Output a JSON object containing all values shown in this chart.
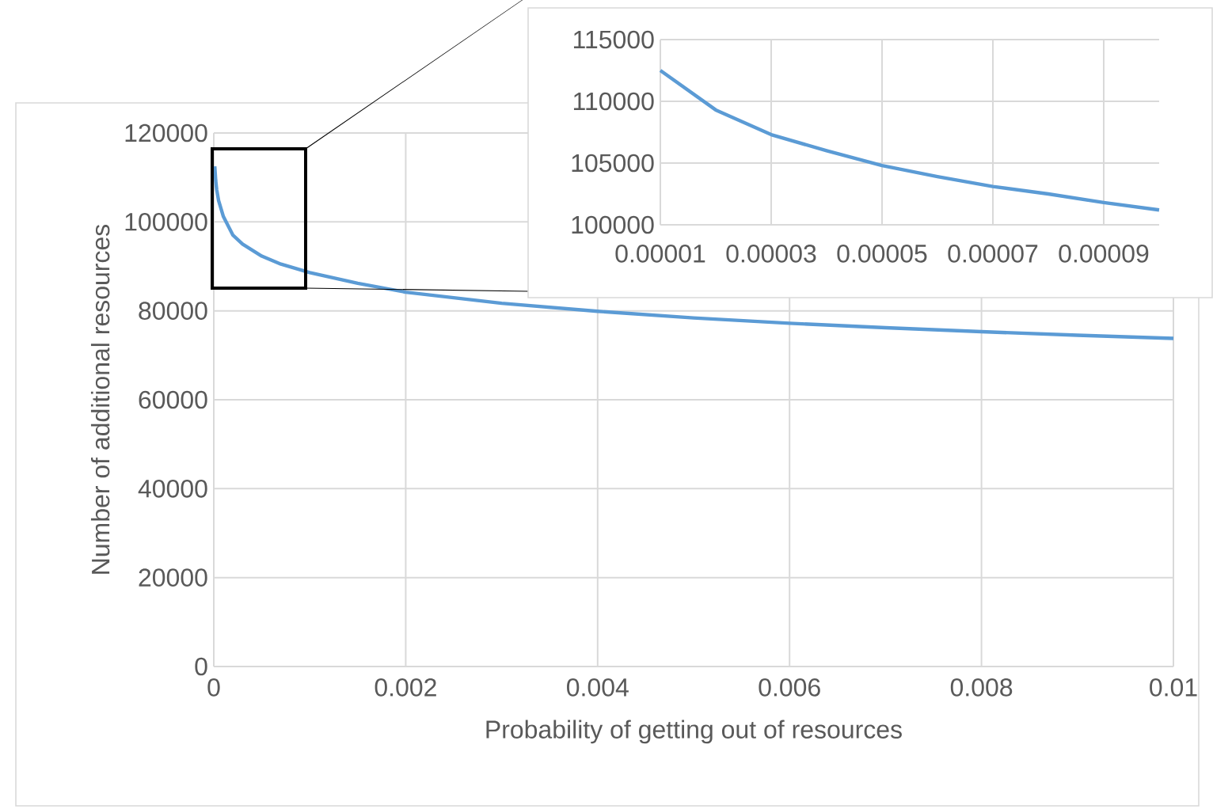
{
  "chart_data": [
    {
      "type": "line",
      "xlabel": "Probability of getting out of resources",
      "ylabel": "Number of additional resources",
      "xlim": [
        0,
        0.01
      ],
      "ylim": [
        0,
        120000
      ],
      "xticks": [
        0,
        0.002,
        0.004,
        0.006,
        0.008,
        0.01
      ],
      "yticks": [
        0,
        20000,
        40000,
        60000,
        80000,
        100000,
        120000
      ],
      "grid": true,
      "x": [
        1e-05,
        2e-05,
        3e-05,
        5e-05,
        0.0001,
        0.0002,
        0.0003,
        0.0005,
        0.0007,
        0.001,
        0.0015,
        0.002,
        0.003,
        0.004,
        0.005,
        0.006,
        0.007,
        0.008,
        0.009,
        0.01
      ],
      "series": [
        {
          "color": "#5b9bd5",
          "values": [
            112500,
            109300,
            107300,
            104800,
            101200,
            97000,
            95000,
            92300,
            90500,
            88600,
            86200,
            84200,
            81700,
            79900,
            78400,
            77200,
            76200,
            75300,
            74500,
            73800
          ]
        }
      ]
    },
    {
      "type": "line",
      "xlim": [
        1e-05,
        0.0001
      ],
      "ylim": [
        100000,
        115000
      ],
      "xticks": [
        {
          "value": 1e-05,
          "label": "0.00001"
        },
        {
          "value": 3e-05,
          "label": "0.00003"
        },
        {
          "value": 5e-05,
          "label": "0.00005"
        },
        {
          "value": 7e-05,
          "label": "0.00007"
        },
        {
          "value": 9e-05,
          "label": "0.00009"
        }
      ],
      "yticks": [
        100000,
        105000,
        110000,
        115000
      ],
      "grid": true,
      "x": [
        1e-05,
        2e-05,
        3e-05,
        4e-05,
        5e-05,
        6e-05,
        7e-05,
        8e-05,
        9e-05,
        0.0001
      ],
      "series": [
        {
          "color": "#5b9bd5",
          "values": [
            112500,
            109300,
            107300,
            106000,
            104800,
            103900,
            103100,
            102500,
            101800,
            101200
          ]
        }
      ]
    }
  ]
}
